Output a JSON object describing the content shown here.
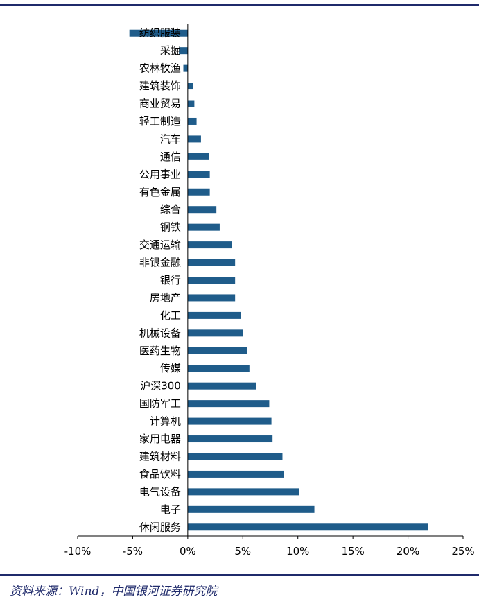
{
  "source_note": "资料来源：Wind，中国银河证券研究院",
  "colors": {
    "bar": "#1f5c8a",
    "rule": "#1f2a6b",
    "axis": "#000000"
  },
  "chart_data": {
    "type": "bar",
    "orientation": "horizontal",
    "categories": [
      "纺织服装",
      "采掘",
      "农林牧渔",
      "建筑装饰",
      "商业贸易",
      "轻工制造",
      "汽车",
      "通信",
      "公用事业",
      "有色金属",
      "综合",
      "钢铁",
      "交通运输",
      "非银金融",
      "银行",
      "房地产",
      "化工",
      "机械设备",
      "医药生物",
      "传媒",
      "沪深300",
      "国防军工",
      "计算机",
      "家用电器",
      "建筑材料",
      "食品饮料",
      "电气设备",
      "电子",
      "休闲服务"
    ],
    "values": [
      -5.3,
      -0.8,
      -0.4,
      0.5,
      0.6,
      0.8,
      1.2,
      1.9,
      2.0,
      2.0,
      2.6,
      2.9,
      4.0,
      4.3,
      4.3,
      4.3,
      4.8,
      5.0,
      5.4,
      5.6,
      6.2,
      7.4,
      7.6,
      7.7,
      8.6,
      8.7,
      10.1,
      11.5,
      21.8
    ],
    "xlim": [
      -10,
      25
    ],
    "ticks": [
      "-10%",
      "-5%",
      "0%",
      "5%",
      "10%",
      "15%",
      "20%",
      "25%"
    ],
    "tick_values": [
      -10,
      -5,
      0,
      5,
      10,
      15,
      20,
      25
    ],
    "title": "",
    "xlabel": "",
    "ylabel": "",
    "grid": false,
    "legend": "none"
  }
}
